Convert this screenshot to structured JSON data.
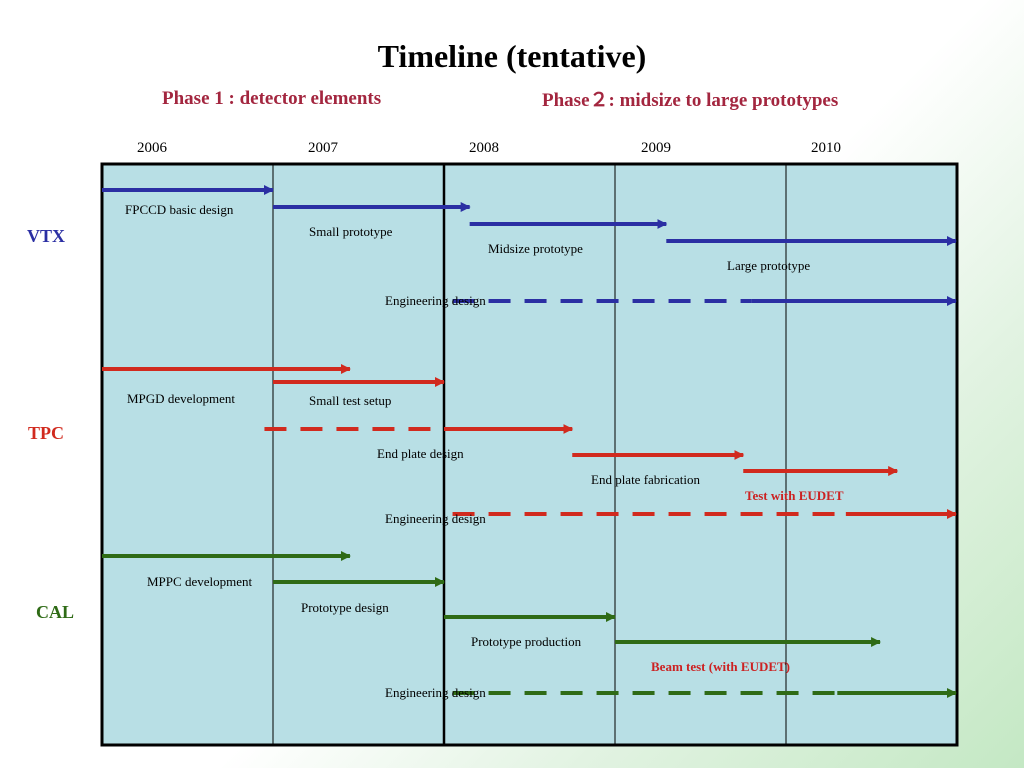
{
  "title": "Timeline (tentative)",
  "phases": {
    "phase1": "Phase 1 : detector elements",
    "phase2": "Phase２: midsize to large prototypes"
  },
  "years": [
    "2006",
    "2007",
    "2008",
    "2009",
    "2010"
  ],
  "groups": {
    "vtx": "VTX",
    "tpc": "TPC",
    "cal": "CAL"
  },
  "colors": {
    "vtx": "#2b2fa3",
    "tpc": "#d12a1e",
    "cal": "#2f6b16",
    "chart_bg": "#b8dfe5",
    "phase_text": "#a3263f"
  },
  "chart_data": {
    "type": "gantt",
    "x_unit": "year",
    "xlim": [
      2006,
      2011
    ],
    "tasks": [
      {
        "group": "VTX",
        "label": "FPCCD basic design",
        "start": 2006.0,
        "end": 2007.0
      },
      {
        "group": "VTX",
        "label": "Small prototype",
        "start": 2007.0,
        "end": 2008.15
      },
      {
        "group": "VTX",
        "label": "Midsize prototype",
        "start": 2008.15,
        "end": 2009.3
      },
      {
        "group": "VTX",
        "label": "Large prototype",
        "start": 2009.3,
        "end": 2011.0
      },
      {
        "group": "VTX",
        "label": "Engineering design",
        "start": 2008.05,
        "end": 2011.0,
        "dashed_until": 2009.8
      },
      {
        "group": "TPC",
        "label": "MPGD development",
        "start": 2006.0,
        "end": 2007.45
      },
      {
        "group": "TPC",
        "label": "Small test setup",
        "start": 2007.0,
        "end": 2008.0
      },
      {
        "group": "TPC",
        "label": "End plate design",
        "start": 2006.95,
        "end": 2008.75,
        "dashed_until": 2008.0
      },
      {
        "group": "TPC",
        "label": "End plate fabrication",
        "start": 2008.75,
        "end": 2009.75
      },
      {
        "group": "TPC",
        "label": "Test with EUDET",
        "start": 2009.75,
        "end": 2010.65,
        "highlight_label": true
      },
      {
        "group": "TPC",
        "label": "Engineering design",
        "start": 2008.05,
        "end": 2011.0,
        "dashed_until": 2010.35
      },
      {
        "group": "CAL",
        "label": "MPPC development",
        "start": 2006.0,
        "end": 2007.45
      },
      {
        "group": "CAL",
        "label": "Prototype design",
        "start": 2007.0,
        "end": 2008.0
      },
      {
        "group": "CAL",
        "label": "Prototype production",
        "start": 2008.0,
        "end": 2009.0
      },
      {
        "group": "CAL",
        "label": "Beam test (with EUDET)",
        "start": 2009.0,
        "end": 2010.55
      },
      {
        "group": "CAL",
        "label": "Engineering design",
        "start": 2008.05,
        "end": 2011.0,
        "dashed_until": 2010.3
      }
    ]
  }
}
